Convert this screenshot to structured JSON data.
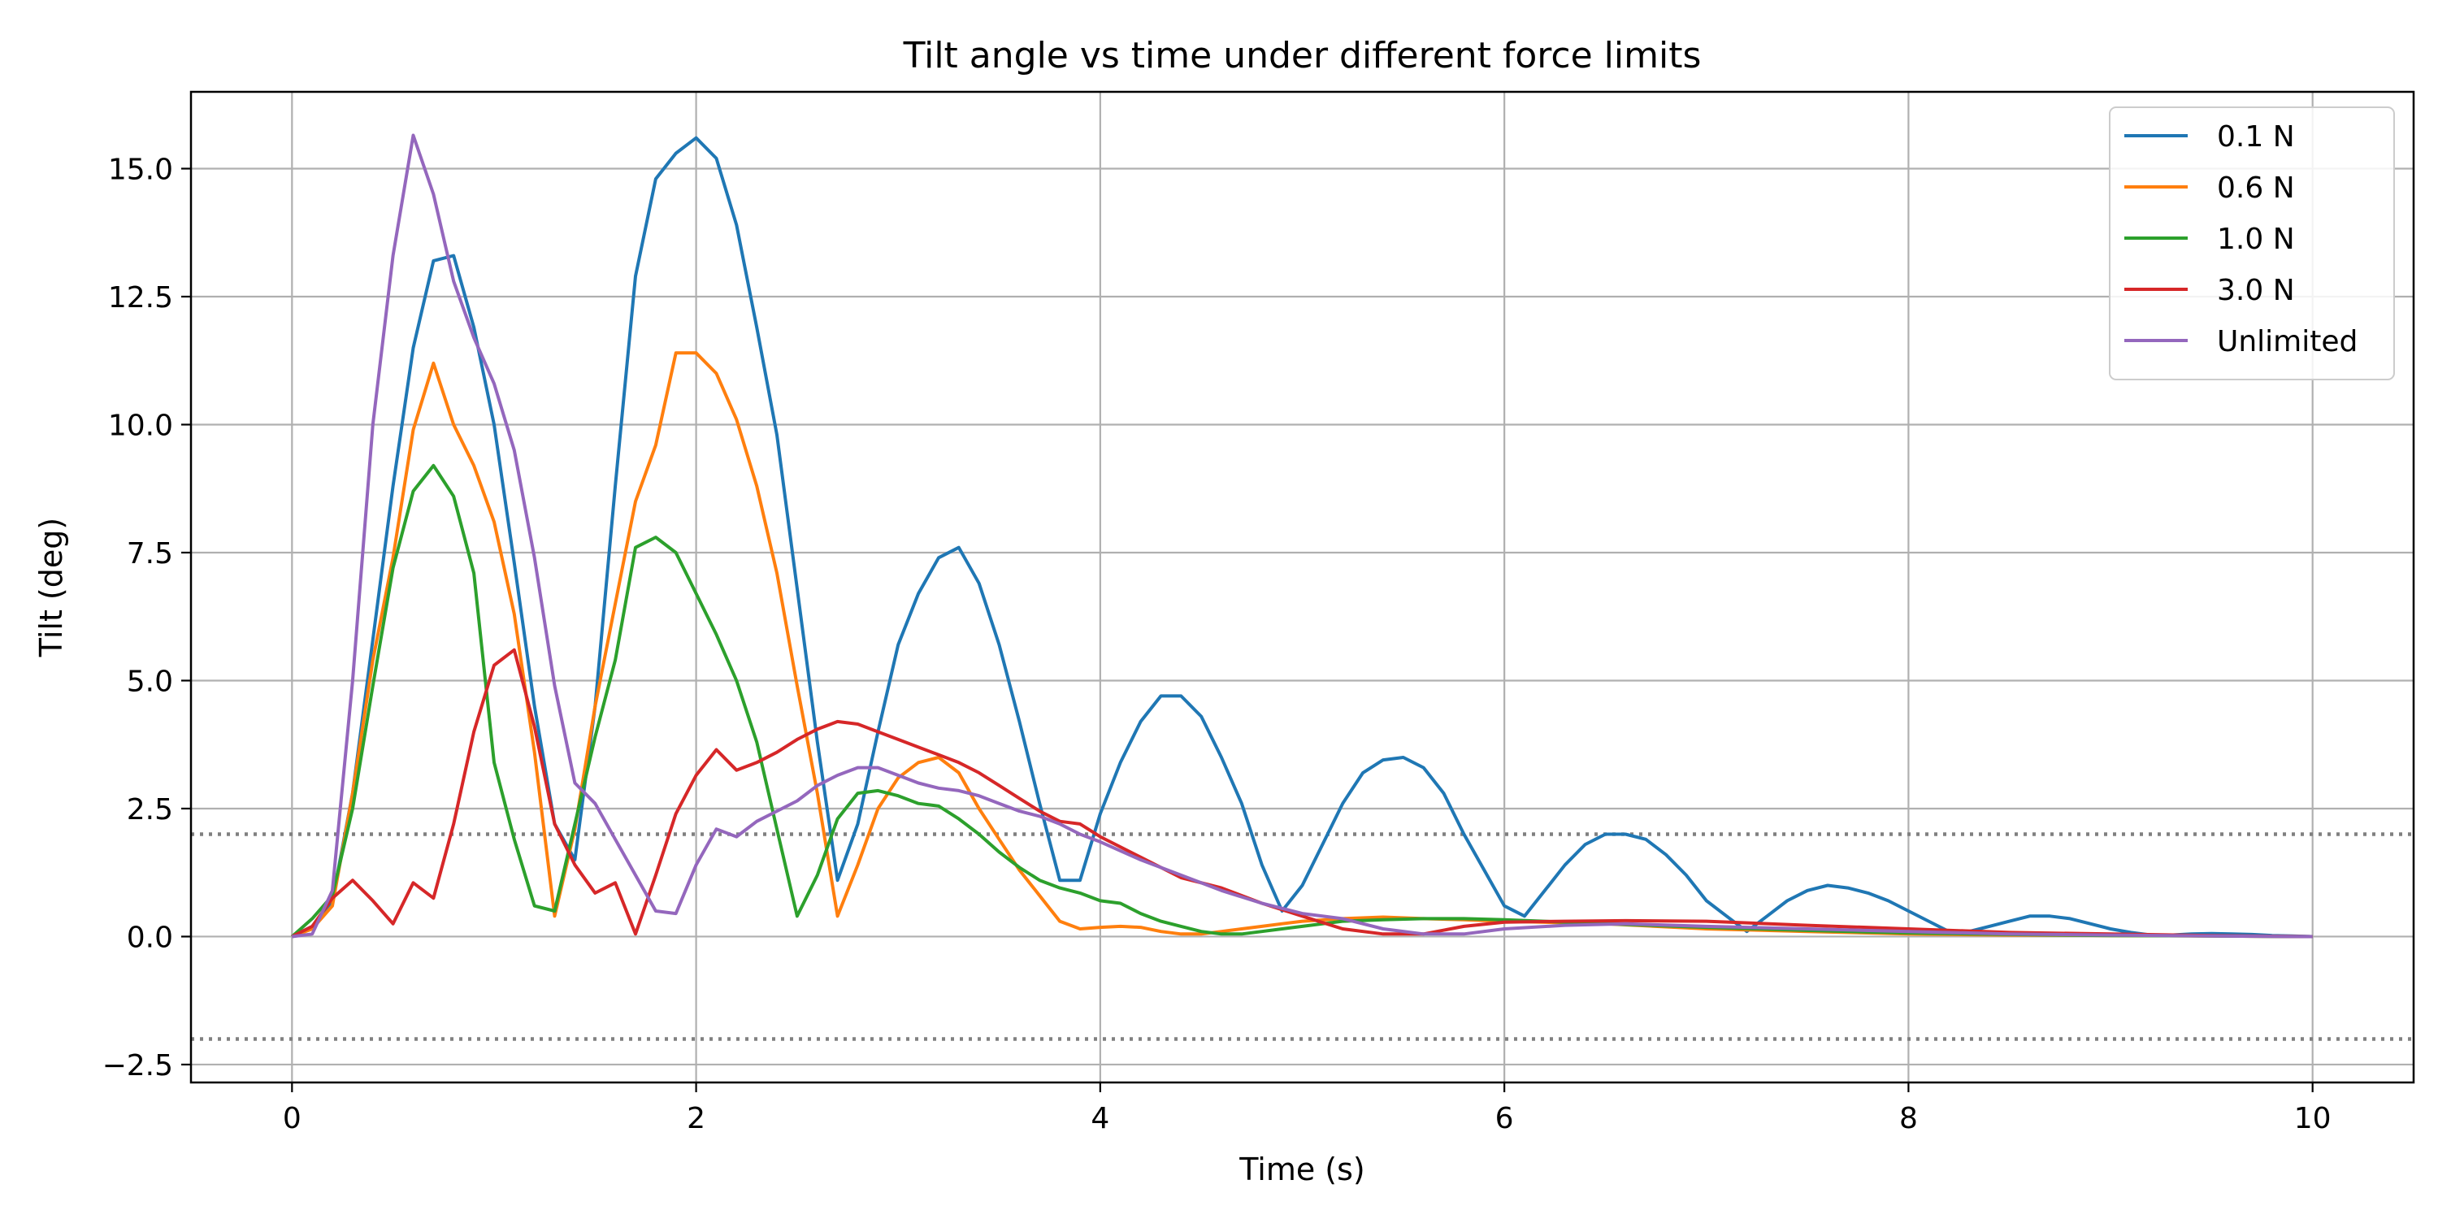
{
  "chart_data": {
    "type": "line",
    "title": "Tilt angle vs time under different force limits",
    "xlabel": "Time (s)",
    "ylabel": "Tilt (deg)",
    "xlim": [
      -0.5,
      10.5
    ],
    "ylim": [
      -2.85,
      16.5
    ],
    "x_ticks": [
      0,
      2,
      4,
      6,
      8,
      10
    ],
    "x_tick_labels": [
      "0",
      "2",
      "4",
      "6",
      "8",
      "10"
    ],
    "y_ticks": [
      -2.5,
      0,
      2.5,
      5,
      7.5,
      10,
      12.5,
      15
    ],
    "y_tick_labels": [
      "−2.5",
      "0.0",
      "2.5",
      "5.0",
      "7.5",
      "10.0",
      "12.5",
      "15.0"
    ],
    "grid": true,
    "legend_position": "top-right",
    "reference_lines": [
      {
        "y": 2.0,
        "style": "dotted",
        "color": "#808080"
      },
      {
        "y": -2.0,
        "style": "dotted",
        "color": "#808080"
      }
    ],
    "series": [
      {
        "name": "0.1 N",
        "color": "#1f77b4",
        "x": [
          0,
          0.1,
          0.2,
          0.3,
          0.4,
          0.5,
          0.6,
          0.7,
          0.8,
          0.9,
          1.0,
          1.1,
          1.2,
          1.3,
          1.4,
          1.5,
          1.6,
          1.7,
          1.8,
          1.9,
          2.0,
          2.1,
          2.2,
          2.3,
          2.4,
          2.5,
          2.6,
          2.7,
          2.8,
          2.9,
          3.0,
          3.1,
          3.2,
          3.3,
          3.4,
          3.5,
          3.6,
          3.7,
          3.8,
          3.9,
          4.0,
          4.1,
          4.2,
          4.3,
          4.4,
          4.5,
          4.6,
          4.7,
          4.8,
          4.9,
          5.0,
          5.1,
          5.2,
          5.3,
          5.4,
          5.5,
          5.6,
          5.7,
          5.8,
          5.9,
          6.0,
          6.1,
          6.2,
          6.3,
          6.4,
          6.5,
          6.6,
          6.7,
          6.8,
          6.9,
          7.0,
          7.1,
          7.2,
          7.3,
          7.4,
          7.5,
          7.6,
          7.7,
          7.8,
          7.9,
          8.0,
          8.1,
          8.2,
          8.3,
          8.4,
          8.5,
          8.6,
          8.7,
          8.8,
          8.9,
          9.0,
          9.1,
          9.2,
          9.3,
          9.4,
          9.5,
          9.6,
          9.7,
          9.8,
          9.9,
          10.0
        ],
        "y": [
          0,
          0.2,
          0.7,
          2.8,
          5.8,
          8.8,
          11.5,
          13.2,
          13.3,
          11.9,
          10.0,
          7.3,
          4.5,
          2.2,
          1.5,
          4.5,
          8.8,
          12.9,
          14.8,
          15.3,
          15.6,
          15.2,
          13.9,
          11.9,
          9.8,
          6.8,
          3.8,
          1.1,
          2.2,
          4.0,
          5.7,
          6.7,
          7.4,
          7.6,
          6.9,
          5.7,
          4.2,
          2.6,
          1.1,
          1.1,
          2.4,
          3.4,
          4.2,
          4.7,
          4.7,
          4.3,
          3.5,
          2.6,
          1.4,
          0.5,
          1.0,
          1.8,
          2.6,
          3.2,
          3.45,
          3.5,
          3.3,
          2.8,
          2.0,
          1.3,
          0.6,
          0.4,
          0.9,
          1.4,
          1.8,
          2.0,
          2.0,
          1.9,
          1.6,
          1.2,
          0.7,
          0.4,
          0.1,
          0.4,
          0.7,
          0.9,
          1.0,
          0.95,
          0.85,
          0.7,
          0.5,
          0.3,
          0.1,
          0.1,
          0.2,
          0.3,
          0.4,
          0.4,
          0.35,
          0.25,
          0.15,
          0.08,
          0.03,
          0.03,
          0.05,
          0.06,
          0.05,
          0.04,
          0.02,
          0.01,
          0.0
        ]
      },
      {
        "name": "0.6 N",
        "color": "#ff7f0e",
        "x": [
          0,
          0.1,
          0.2,
          0.3,
          0.4,
          0.5,
          0.6,
          0.7,
          0.8,
          0.9,
          1.0,
          1.1,
          1.2,
          1.3,
          1.4,
          1.5,
          1.6,
          1.7,
          1.8,
          1.9,
          2.0,
          2.1,
          2.2,
          2.3,
          2.4,
          2.5,
          2.6,
          2.7,
          2.8,
          2.9,
          3.0,
          3.1,
          3.2,
          3.3,
          3.4,
          3.5,
          3.6,
          3.7,
          3.8,
          3.9,
          4.0,
          4.1,
          4.2,
          4.3,
          4.4,
          4.5,
          4.6,
          4.7,
          4.8,
          4.9,
          5.0,
          5.2,
          5.4,
          5.6,
          5.8,
          6.0,
          6.5,
          7.0,
          7.5,
          8.0,
          8.5,
          9.0,
          9.5,
          10.0
        ],
        "y": [
          0,
          0.15,
          0.6,
          2.8,
          5.4,
          7.4,
          9.9,
          11.2,
          10.0,
          9.2,
          8.1,
          6.3,
          3.6,
          0.4,
          2.1,
          4.5,
          6.5,
          8.5,
          9.6,
          11.4,
          11.4,
          11.0,
          10.1,
          8.8,
          7.1,
          4.9,
          2.8,
          0.4,
          1.4,
          2.5,
          3.1,
          3.4,
          3.5,
          3.2,
          2.5,
          1.9,
          1.3,
          0.8,
          0.3,
          0.15,
          0.18,
          0.2,
          0.18,
          0.1,
          0.05,
          0.05,
          0.1,
          0.15,
          0.2,
          0.25,
          0.3,
          0.35,
          0.38,
          0.35,
          0.33,
          0.3,
          0.25,
          0.15,
          0.1,
          0.05,
          0.03,
          0.02,
          0.01,
          0.0
        ]
      },
      {
        "name": "1.0 N",
        "color": "#2ca02c",
        "x": [
          0,
          0.1,
          0.2,
          0.3,
          0.4,
          0.5,
          0.6,
          0.7,
          0.8,
          0.9,
          1.0,
          1.1,
          1.2,
          1.3,
          1.4,
          1.5,
          1.6,
          1.7,
          1.8,
          1.9,
          2.0,
          2.1,
          2.2,
          2.3,
          2.4,
          2.5,
          2.6,
          2.7,
          2.8,
          2.9,
          3.0,
          3.1,
          3.2,
          3.3,
          3.4,
          3.5,
          3.6,
          3.7,
          3.8,
          3.9,
          4.0,
          4.1,
          4.2,
          4.3,
          4.4,
          4.5,
          4.6,
          4.7,
          4.8,
          4.9,
          5.0,
          5.2,
          5.4,
          5.6,
          5.8,
          6.0,
          6.5,
          7.0,
          7.5,
          8.0,
          8.5,
          9.0,
          9.5,
          10.0
        ],
        "y": [
          0,
          0.35,
          0.8,
          2.5,
          4.9,
          7.2,
          8.7,
          9.2,
          8.6,
          7.1,
          3.4,
          1.9,
          0.6,
          0.5,
          2.2,
          3.9,
          5.4,
          7.6,
          7.8,
          7.5,
          6.7,
          5.9,
          5.0,
          3.8,
          2.1,
          0.4,
          1.2,
          2.3,
          2.8,
          2.85,
          2.75,
          2.6,
          2.55,
          2.3,
          2.0,
          1.65,
          1.35,
          1.1,
          0.95,
          0.85,
          0.7,
          0.65,
          0.45,
          0.3,
          0.2,
          0.1,
          0.05,
          0.05,
          0.1,
          0.15,
          0.2,
          0.3,
          0.33,
          0.35,
          0.35,
          0.33,
          0.25,
          0.18,
          0.12,
          0.07,
          0.04,
          0.02,
          0.01,
          0.0
        ]
      },
      {
        "name": "3.0 N",
        "color": "#d62728",
        "x": [
          0,
          0.1,
          0.2,
          0.3,
          0.4,
          0.5,
          0.6,
          0.7,
          0.8,
          0.9,
          1.0,
          1.1,
          1.2,
          1.3,
          1.4,
          1.5,
          1.6,
          1.7,
          1.8,
          1.9,
          2.0,
          2.1,
          2.2,
          2.3,
          2.4,
          2.5,
          2.6,
          2.7,
          2.8,
          2.9,
          3.0,
          3.1,
          3.2,
          3.3,
          3.4,
          3.5,
          3.6,
          3.7,
          3.8,
          3.9,
          4.0,
          4.2,
          4.4,
          4.6,
          4.8,
          5.0,
          5.2,
          5.4,
          5.6,
          5.8,
          6.0,
          6.3,
          6.6,
          7.0,
          7.5,
          8.0,
          8.5,
          9.0,
          9.5,
          10.0
        ],
        "y": [
          0,
          0.2,
          0.75,
          1.1,
          0.7,
          0.25,
          1.05,
          0.75,
          2.2,
          4.0,
          5.3,
          5.6,
          4.1,
          2.2,
          1.4,
          0.85,
          1.05,
          0.05,
          1.2,
          2.4,
          3.15,
          3.65,
          3.25,
          3.4,
          3.6,
          3.85,
          4.05,
          4.2,
          4.15,
          4.0,
          3.85,
          3.7,
          3.55,
          3.4,
          3.2,
          2.95,
          2.7,
          2.45,
          2.25,
          2.2,
          1.95,
          1.55,
          1.15,
          0.95,
          0.65,
          0.4,
          0.15,
          0.05,
          0.05,
          0.2,
          0.28,
          0.3,
          0.31,
          0.3,
          0.22,
          0.15,
          0.08,
          0.05,
          0.02,
          0.0
        ]
      },
      {
        "name": "Unlimited",
        "color": "#9467bd",
        "x": [
          0,
          0.1,
          0.2,
          0.3,
          0.4,
          0.5,
          0.6,
          0.7,
          0.8,
          0.9,
          1.0,
          1.1,
          1.2,
          1.3,
          1.4,
          1.5,
          1.6,
          1.7,
          1.8,
          1.9,
          2.0,
          2.1,
          2.2,
          2.3,
          2.4,
          2.5,
          2.6,
          2.7,
          2.8,
          2.9,
          3.0,
          3.1,
          3.2,
          3.3,
          3.4,
          3.5,
          3.6,
          3.7,
          3.8,
          3.9,
          4.0,
          4.2,
          4.4,
          4.6,
          4.8,
          5.0,
          5.2,
          5.4,
          5.6,
          5.8,
          6.0,
          6.3,
          6.6,
          7.0,
          7.5,
          8.0,
          8.5,
          9.0,
          9.5,
          10.0
        ],
        "y": [
          0,
          0.05,
          0.9,
          5.0,
          10.0,
          13.3,
          15.65,
          14.5,
          12.8,
          11.7,
          10.8,
          9.5,
          7.4,
          4.9,
          3.0,
          2.6,
          1.9,
          1.2,
          0.5,
          0.45,
          1.4,
          2.1,
          1.95,
          2.25,
          2.45,
          2.65,
          2.95,
          3.15,
          3.3,
          3.3,
          3.15,
          3.0,
          2.9,
          2.85,
          2.75,
          2.6,
          2.45,
          2.35,
          2.2,
          2.0,
          1.85,
          1.5,
          1.2,
          0.9,
          0.65,
          0.45,
          0.35,
          0.15,
          0.05,
          0.05,
          0.15,
          0.22,
          0.25,
          0.2,
          0.15,
          0.1,
          0.05,
          0.03,
          0.01,
          0.0
        ]
      }
    ]
  }
}
